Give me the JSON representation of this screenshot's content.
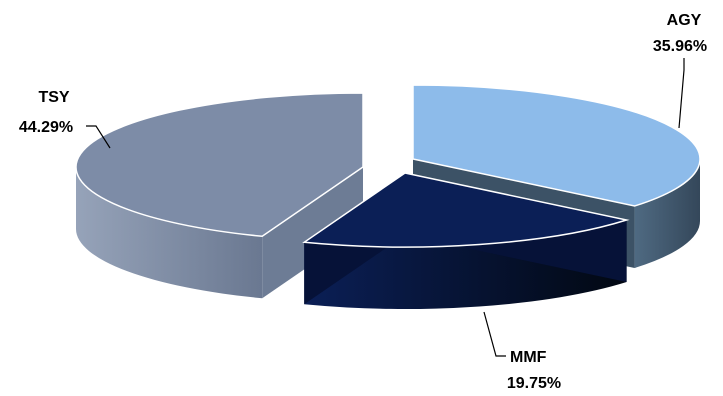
{
  "chart_data": {
    "type": "pie",
    "style": "3d-exploded",
    "title": "",
    "slices": [
      {
        "label": "AGY",
        "value": 35.96,
        "display": "35.96%",
        "color": "#8dbbea",
        "side_color": "#3c5266"
      },
      {
        "label": "MMF",
        "value": 19.75,
        "display": "19.75%",
        "color": "#0b1f56",
        "side_color": "#061238"
      },
      {
        "label": "TSY",
        "value": 44.29,
        "display": "44.29%",
        "color": "#7d8ca7",
        "side_color": "#6d7c95"
      }
    ]
  }
}
